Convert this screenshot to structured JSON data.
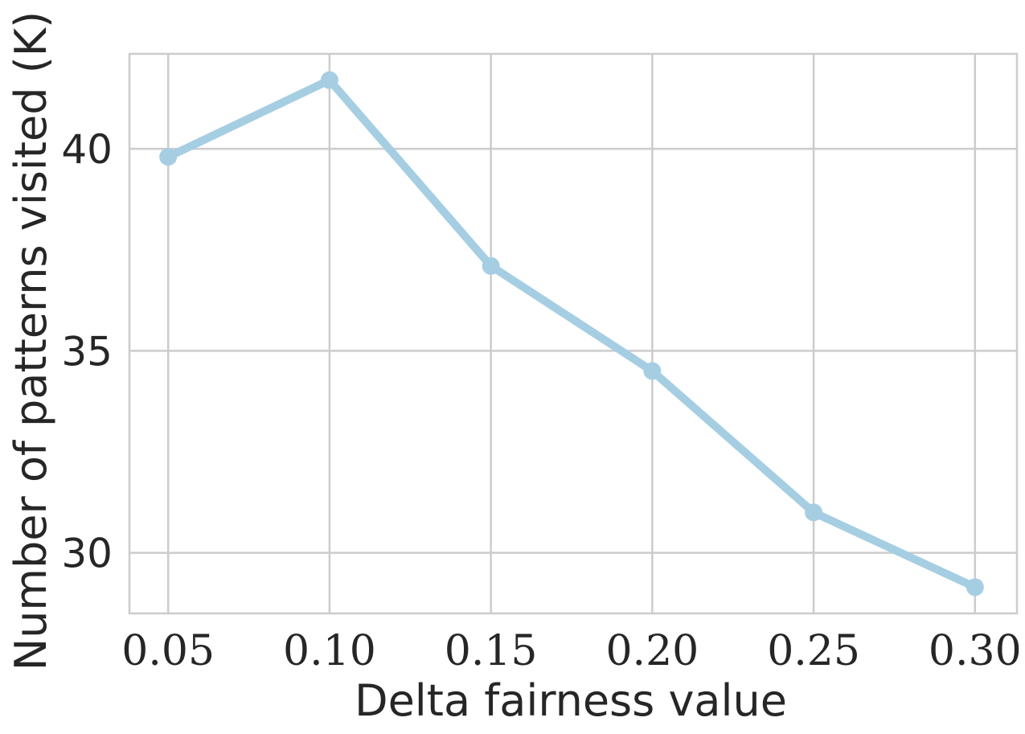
{
  "chart_data": {
    "type": "line",
    "title": "",
    "xlabel": "Delta fairness value",
    "ylabel": "Number of patterns visited (K)",
    "x": [
      0.05,
      0.1,
      0.15,
      0.2,
      0.25,
      0.3
    ],
    "x_tick_labels": [
      "0.05",
      "0.10",
      "0.15",
      "0.20",
      "0.25",
      "0.30"
    ],
    "y_ticks": [
      30,
      35,
      40
    ],
    "y_tick_labels": [
      "30",
      "35",
      "40"
    ],
    "xlim": [
      0.038,
      0.313
    ],
    "ylim": [
      28.5,
      42.35
    ],
    "grid": true,
    "legend": "none",
    "series": [
      {
        "values": [
          39.8,
          41.7,
          37.1,
          34.5,
          31.0,
          29.15
        ],
        "color": "#a6cee3"
      }
    ]
  }
}
